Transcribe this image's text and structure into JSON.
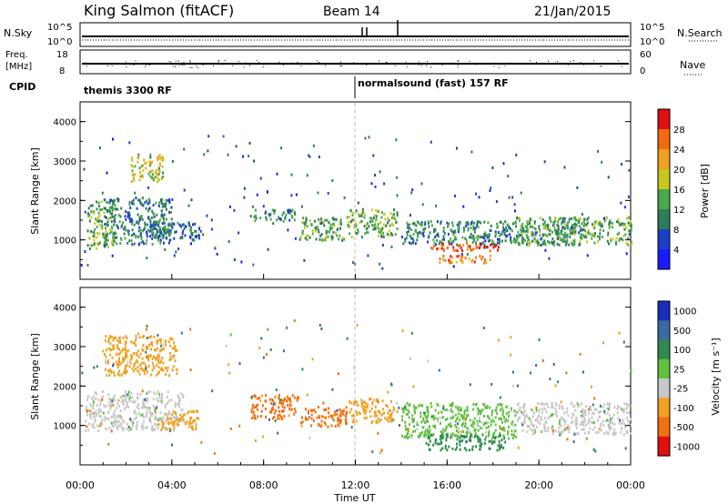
{
  "header": {
    "station": "King Salmon (fitACF)",
    "beam": "Beam 14",
    "date": "21/Jan/2015"
  },
  "aux_panels": {
    "nsky": {
      "label": "N.Sky",
      "ticks": [
        "10^5",
        "10^0"
      ],
      "right_label": "N.Search",
      "right_ticks": [
        "10^5",
        "10^0"
      ]
    },
    "freq": {
      "label_top": "Freq.",
      "label_unit": "[MHz]",
      "ticks": [
        "18",
        "8"
      ],
      "right_label": "Nave",
      "right_ticks": [
        "60",
        "0"
      ]
    },
    "cpid": {
      "label": "CPID",
      "segments": [
        "themis 3300 RF",
        "normalsound (fast) 157 RF"
      ]
    }
  },
  "chart_data": [
    {
      "type": "heatmap",
      "name": "power",
      "ylabel": "Slant Range [km]",
      "yticks": [
        "1000",
        "2000",
        "3000",
        "4000"
      ],
      "ylim": [
        0,
        4500
      ],
      "xlim_hours": [
        0,
        24
      ],
      "colorbar": {
        "label": "Power [dB]",
        "ticks": [
          "4",
          "8",
          "12",
          "16",
          "20",
          "24",
          "28"
        ],
        "range": [
          0,
          32
        ],
        "colors": [
          "#1a1aff",
          "#1e3fc8",
          "#2e7d5a",
          "#4aa84a",
          "#c7c71f",
          "#f0a020",
          "#f26a10",
          "#e01010"
        ]
      },
      "regions": [
        {
          "t0": 0.3,
          "t1": 1.5,
          "r0": 800,
          "r1": 2000,
          "v": 14
        },
        {
          "t0": 1.0,
          "t1": 4.0,
          "r0": 900,
          "r1": 2100,
          "v": 10
        },
        {
          "t0": 2.2,
          "t1": 3.6,
          "r0": 2500,
          "r1": 3200,
          "v": 18
        },
        {
          "t0": 3.0,
          "t1": 5.2,
          "r0": 1000,
          "r1": 1500,
          "v": 9
        },
        {
          "t0": 7.4,
          "t1": 9.4,
          "r0": 1500,
          "r1": 1800,
          "v": 11
        },
        {
          "t0": 9.5,
          "t1": 11.5,
          "r0": 1000,
          "r1": 1600,
          "v": 13
        },
        {
          "t0": 11.6,
          "t1": 13.8,
          "r0": 1100,
          "r1": 1800,
          "v": 14
        },
        {
          "t0": 14.0,
          "t1": 22.0,
          "r0": 900,
          "r1": 1500,
          "v": 11
        },
        {
          "t0": 15.2,
          "t1": 18.4,
          "r0": 750,
          "r1": 950,
          "v": 28
        },
        {
          "t0": 15.6,
          "t1": 18.0,
          "r0": 450,
          "r1": 650,
          "v": 24
        },
        {
          "t0": 19.0,
          "t1": 24.0,
          "r0": 900,
          "r1": 1600,
          "v": 13
        }
      ]
    },
    {
      "type": "heatmap",
      "name": "velocity",
      "ylabel": "Slant Range [km]",
      "yticks": [
        "1000",
        "2000",
        "3000",
        "4000"
      ],
      "ylim": [
        0,
        4500
      ],
      "xlim_hours": [
        0,
        24
      ],
      "colorbar": {
        "label": "Velocity [m s⁻¹]",
        "ticks": [
          "1000",
          "500",
          "100",
          "25",
          "-25",
          "-100",
          "-500",
          "-1000"
        ],
        "colors": [
          "#1a2fb8",
          "#3a6aa0",
          "#2e8a50",
          "#60c040",
          "#c8c8c8",
          "#f0a020",
          "#f07010",
          "#e01010"
        ]
      },
      "regions": [
        {
          "t0": 0.2,
          "t1": 4.5,
          "r0": 900,
          "r1": 1900,
          "v": -25
        },
        {
          "t0": 1.0,
          "t1": 4.2,
          "r0": 2300,
          "r1": 3300,
          "v": -100
        },
        {
          "t0": 3.5,
          "t1": 5.2,
          "r0": 900,
          "r1": 1400,
          "v": -100
        },
        {
          "t0": 7.4,
          "t1": 9.5,
          "r0": 1200,
          "r1": 1800,
          "v": -500
        },
        {
          "t0": 9.6,
          "t1": 11.6,
          "r0": 1000,
          "r1": 1500,
          "v": -500
        },
        {
          "t0": 11.7,
          "t1": 13.8,
          "r0": 1100,
          "r1": 1700,
          "v": -100
        },
        {
          "t0": 14.0,
          "t1": 19.0,
          "r0": 700,
          "r1": 1600,
          "v": 25
        },
        {
          "t0": 15.0,
          "t1": 18.5,
          "r0": 400,
          "r1": 800,
          "v": 100
        },
        {
          "t0": 19.0,
          "t1": 24.0,
          "r0": 800,
          "r1": 1600,
          "v": -25
        }
      ]
    }
  ],
  "xaxis": {
    "label": "Time UT",
    "ticks": [
      "00:00",
      "04:00",
      "08:00",
      "12:00",
      "16:00",
      "20:00",
      "00:00"
    ]
  }
}
